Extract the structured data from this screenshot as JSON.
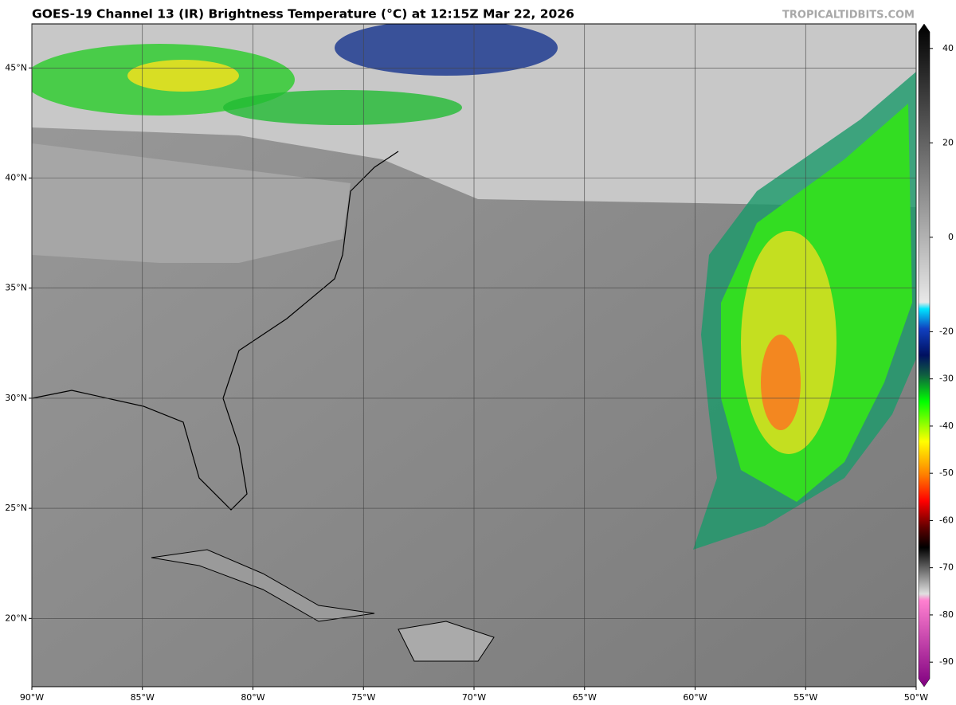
{
  "header": {
    "title": "GOES-19 Channel 13 (IR) Brightness Temperature (°C) at 12:15Z Mar 22, 2026",
    "watermark": "TROPICALTIDBITS.COM"
  },
  "map": {
    "lon_lim": [
      -90,
      -50
    ],
    "lat_lim": [
      16.9,
      47.0
    ],
    "lat_ticks": [
      {
        "value": 45,
        "label": "45°N"
      },
      {
        "value": 40,
        "label": "40°N"
      },
      {
        "value": 35,
        "label": "35°N"
      },
      {
        "value": 30,
        "label": "30°N"
      },
      {
        "value": 25,
        "label": "25°N"
      },
      {
        "value": 20,
        "label": "20°N"
      }
    ],
    "lon_ticks": [
      {
        "value": -90,
        "label": "90°W"
      },
      {
        "value": -85,
        "label": "85°W"
      },
      {
        "value": -80,
        "label": "80°W"
      },
      {
        "value": -75,
        "label": "75°W"
      },
      {
        "value": -70,
        "label": "70°W"
      },
      {
        "value": -65,
        "label": "65°W"
      },
      {
        "value": -60,
        "label": "60°W"
      },
      {
        "value": -55,
        "label": "55°W"
      },
      {
        "value": -50,
        "label": "50°W"
      }
    ],
    "grid": true
  },
  "colorbar": {
    "lim": [
      -95.2,
      45.2
    ],
    "ticks": [
      40,
      20,
      0,
      -20,
      -30,
      -40,
      -50,
      -60,
      -70,
      -80,
      -90
    ]
  }
}
